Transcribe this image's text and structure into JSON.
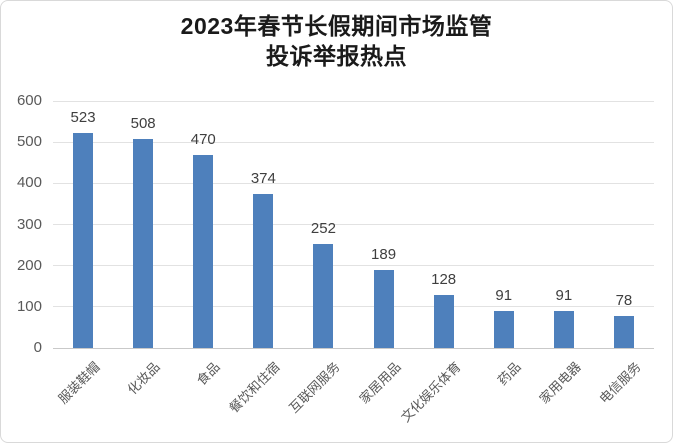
{
  "chart_data": {
    "type": "bar",
    "title": "2023年春节长假期间市场监管投诉举报热点",
    "title_lines": [
      "2023年春节长假期间市场监管",
      "投诉举报热点"
    ],
    "categories": [
      "服装鞋帽",
      "化妆品",
      "食品",
      "餐饮和住宿",
      "互联网服务",
      "家居用品",
      "文化娱乐体育",
      "药品",
      "家用电器",
      "电信服务"
    ],
    "values": [
      523,
      508,
      470,
      374,
      252,
      189,
      128,
      91,
      91,
      78
    ],
    "xlabel": "",
    "ylabel": "",
    "ylim": [
      0,
      600
    ],
    "yticks": [
      0,
      100,
      200,
      300,
      400,
      500,
      600
    ],
    "grid": true,
    "data_labels": true,
    "legend_position": "none",
    "category_label_rotation_deg": 45,
    "colors": {
      "bar": "#4E80BC",
      "title": "#1A1A1A",
      "tick_label": "#595959",
      "value_label": "#3F3F3F",
      "gridline": "#E2E2E2",
      "axis_line": "#C9C9C9",
      "border": "#D9D9D9",
      "background": "#FFFFFF"
    }
  }
}
